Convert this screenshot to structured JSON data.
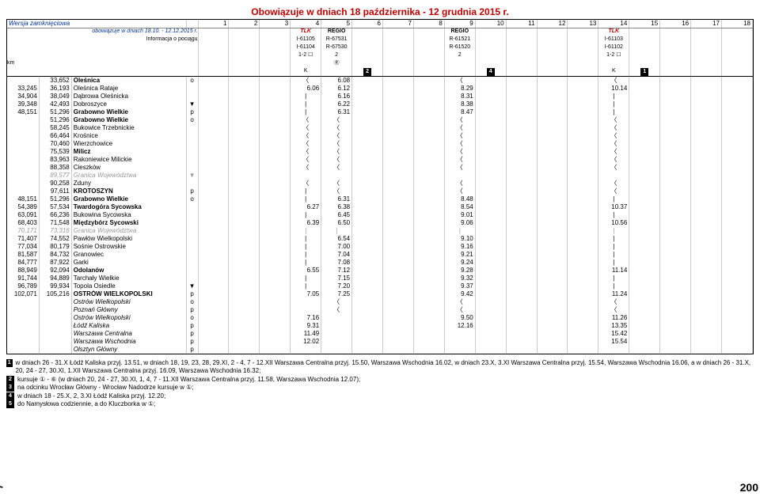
{
  "title": "Obowiązuje w dniach 18 października - 12 grudnia 2015 r.",
  "header": {
    "line1": "Wersja zamknięciowa",
    "line2": "obowiązuje w dniach 18.10. - 12.12.2015 r.",
    "line3": "Informacja o pociągu",
    "km_label": "km"
  },
  "col_numbers": [
    "1",
    "2",
    "3",
    "4",
    "5",
    "6",
    "7",
    "8",
    "9",
    "10",
    "11",
    "12",
    "13",
    "14",
    "15",
    "16",
    "17",
    "18"
  ],
  "trains": [
    {
      "col": 4,
      "lines": [
        "TLK",
        "I-61105",
        "I-61104",
        "1-2 ☐",
        "",
        "K"
      ],
      "types": [
        "tlk",
        "",
        "",
        "",
        "",
        ""
      ]
    },
    {
      "col": 5,
      "lines": [
        "REGIO",
        "R-67531",
        "R-67530",
        "2",
        "Ⓡ",
        ""
      ],
      "types": [
        "regio",
        "",
        "",
        "",
        "",
        ""
      ]
    },
    {
      "col": 6,
      "lines": [
        "",
        "",
        "",
        "",
        "",
        "2"
      ],
      "types": [
        "",
        "",
        "",
        "",
        "",
        "box"
      ]
    },
    {
      "col": 9,
      "lines": [
        "REGIO",
        "R-61521",
        "R-61520",
        "2",
        "",
        ""
      ],
      "types": [
        "regio",
        "",
        "",
        "",
        "",
        ""
      ]
    },
    {
      "col": 10,
      "lines": [
        "",
        "",
        "",
        "",
        "",
        "4"
      ],
      "types": [
        "",
        "",
        "",
        "",
        "",
        "box"
      ]
    },
    {
      "col": 14,
      "lines": [
        "TLK",
        "I-61103",
        "I-61102",
        "1-2 ☐",
        "",
        "K"
      ],
      "types": [
        "tlk",
        "",
        "",
        "",
        "",
        ""
      ]
    },
    {
      "col": 15,
      "lines": [
        "",
        "",
        "",
        "",
        "",
        "1"
      ],
      "types": [
        "",
        "",
        "",
        "",
        "",
        "box"
      ]
    }
  ],
  "stations": [
    {
      "km1": "",
      "km2": "33,652",
      "name": "Oleśnica",
      "op": "o",
      "bold": true,
      "cells": {
        "4": "〈",
        "5": "6.08",
        "9": "〈",
        "14": "〈"
      }
    },
    {
      "km1": "33,245",
      "km2": "36,193",
      "name": "Oleśnica Rataje",
      "op": "",
      "cells": {
        "4": "6.06",
        "5": "6.12",
        "9": "8.29",
        "14": "10.14"
      }
    },
    {
      "km1": "34,904",
      "km2": "38,049",
      "name": "Dąbrowa Oleśnicka",
      "op": "",
      "cells": {
        "4": "|",
        "5": "6.16",
        "9": "8.31",
        "14": "|"
      }
    },
    {
      "km1": "39,348",
      "km2": "42,493",
      "name": "Dobroszyce",
      "op": "▼",
      "cells": {
        "4": "|",
        "5": "6.22",
        "9": "8.38",
        "14": "|"
      }
    },
    {
      "km1": "48,151",
      "km2": "51,296",
      "name": "Grabowno Wielkie",
      "op": "p",
      "bold": true,
      "cells": {
        "4": "|",
        "5": "6.31",
        "9": "8.47",
        "14": "|"
      }
    },
    {
      "km1": "",
      "km2": "51,296",
      "name": "Grabowno Wielkie",
      "op": "o",
      "bold": true,
      "cells": {
        "4": "〈",
        "5": "〈",
        "9": "〈",
        "14": "〈"
      }
    },
    {
      "km1": "",
      "km2": "58,245",
      "name": "Bukowice Trzebnickie",
      "op": "",
      "cells": {
        "4": "〈",
        "5": "〈",
        "9": "〈",
        "14": "〈"
      }
    },
    {
      "km1": "",
      "km2": "66,464",
      "name": "Krośnice",
      "op": "",
      "cells": {
        "4": "〈",
        "5": "〈",
        "9": "〈",
        "14": "〈"
      }
    },
    {
      "km1": "",
      "km2": "70,460",
      "name": "Wierzchowice",
      "op": "",
      "cells": {
        "4": "〈",
        "5": "〈",
        "9": "〈",
        "14": "〈"
      }
    },
    {
      "km1": "",
      "km2": "75,539",
      "name": "Milicz",
      "op": "",
      "bold": true,
      "cells": {
        "4": "〈",
        "5": "〈",
        "9": "〈",
        "14": "〈"
      }
    },
    {
      "km1": "",
      "km2": "83,963",
      "name": "Rakoniewice Milickie",
      "op": "",
      "cells": {
        "4": "〈",
        "5": "〈",
        "9": "〈",
        "14": "〈"
      }
    },
    {
      "km1": "",
      "km2": "88,358",
      "name": "Cieszków",
      "op": "",
      "cells": {
        "4": "〈",
        "5": "〈",
        "9": "〈",
        "14": "〈"
      }
    },
    {
      "km1": "",
      "km2": "89,577",
      "name": "Granica Województwa",
      "op": "▼",
      "gray": true,
      "cells": {}
    },
    {
      "km1": "",
      "km2": "90,258",
      "name": "Zduny",
      "op": "",
      "cells": {
        "4": "〈",
        "5": "〈",
        "9": "〈",
        "14": "〈"
      }
    },
    {
      "km1": "",
      "km2": "97,611",
      "name": "KROTOSZYN",
      "op": "p",
      "bold": true,
      "cells": {
        "4": "|",
        "5": "〈",
        "9": "〈",
        "14": "〈"
      }
    },
    {
      "km1": "48,151",
      "km2": "51,296",
      "name": "Grabowno Wielkie",
      "op": "o",
      "bold": true,
      "cells": {
        "4": "|",
        "5": "6.31",
        "9": "8.48",
        "14": "|"
      }
    },
    {
      "km1": "54,389",
      "km2": "57,534",
      "name": "Twardogóra Sycowska",
      "op": "",
      "bold": true,
      "cells": {
        "4": "6.27",
        "5": "6.38",
        "9": "8.54",
        "14": "10.37"
      }
    },
    {
      "km1": "63,091",
      "km2": "66,236",
      "name": "Bukowina Sycowska",
      "op": "",
      "cells": {
        "4": "|",
        "5": "6.45",
        "9": "9.01",
        "14": "|"
      }
    },
    {
      "km1": "68,403",
      "km2": "71,548",
      "name": "Międzybórz Sycowski",
      "op": "",
      "bold": true,
      "cells": {
        "4": "6.39",
        "5": "6.50",
        "9": "9.06",
        "14": "10.56"
      }
    },
    {
      "km1": "70,171",
      "km2": "73,316",
      "name": "Granica Województwa",
      "op": "",
      "gray": true,
      "cells": {
        "4": "|",
        "5": "|",
        "9": "|",
        "14": "|"
      }
    },
    {
      "km1": "71,407",
      "km2": "74,552",
      "name": "Pawłów Wielkopolski",
      "op": "",
      "cells": {
        "4": "|",
        "5": "6.54",
        "9": "9.10",
        "14": "|"
      }
    },
    {
      "km1": "77,034",
      "km2": "80,179",
      "name": "Sośnie Ostrowskie",
      "op": "",
      "cells": {
        "4": "|",
        "5": "7.00",
        "9": "9.16",
        "14": "|"
      }
    },
    {
      "km1": "81,587",
      "km2": "84,732",
      "name": "Granowiec",
      "op": "",
      "cells": {
        "4": "|",
        "5": "7.04",
        "9": "9.21",
        "14": "|"
      }
    },
    {
      "km1": "84,777",
      "km2": "87,922",
      "name": "Garki",
      "op": "",
      "cells": {
        "4": "|",
        "5": "7.08",
        "9": "9.24",
        "14": "|"
      }
    },
    {
      "km1": "88,949",
      "km2": "92,094",
      "name": "Odolanów",
      "op": "",
      "bold": true,
      "cells": {
        "4": "6.55",
        "5": "7.12",
        "9": "9.28",
        "14": "11.14"
      }
    },
    {
      "km1": "91,744",
      "km2": "94,889",
      "name": "Tarchały Wielkie",
      "op": "",
      "cells": {
        "4": "|",
        "5": "7.15",
        "9": "9.32",
        "14": "|"
      }
    },
    {
      "km1": "96,789",
      "km2": "99,934",
      "name": "Topola Osiedle",
      "op": "▼",
      "cells": {
        "4": "|",
        "5": "7.20",
        "9": "9.37",
        "14": "|"
      }
    },
    {
      "km1": "102,071",
      "km2": "105,216",
      "name": "OSTRÓW WIELKOPOLSKI",
      "op": "p",
      "bold": true,
      "cells": {
        "4": "7.05",
        "5": "7.25",
        "9": "9.42",
        "14": "11.24"
      }
    },
    {
      "km1": "",
      "km2": "",
      "name": "Ostrów Wielkopolski",
      "op": "o",
      "italic": true,
      "cells": {
        "5": "〈",
        "9": "〈",
        "14": "〈"
      }
    },
    {
      "km1": "",
      "km2": "",
      "name": "Poznań Główny",
      "op": "p",
      "italic": true,
      "cells": {
        "5": "〈",
        "9": "〈",
        "14": "〈"
      }
    },
    {
      "km1": "",
      "km2": "",
      "name": "Ostrów Wielkopolski",
      "op": "o",
      "italic": true,
      "cells": {
        "4": "7.16",
        "9": "9.50",
        "14": "11.26"
      }
    },
    {
      "km1": "",
      "km2": "",
      "name": "Łódź Kaliska",
      "op": "p",
      "italic": true,
      "cells": {
        "4": "9.31",
        "9": "12.16",
        "14": "13.35"
      }
    },
    {
      "km1": "",
      "km2": "",
      "name": "Warszawa Centralna",
      "op": "p",
      "italic": true,
      "cells": {
        "4": "11.49",
        "14": "15.42"
      }
    },
    {
      "km1": "",
      "km2": "",
      "name": "Warszawa Wschodnia",
      "op": "p",
      "italic": true,
      "cells": {
        "4": "12.02",
        "14": "15.54"
      }
    },
    {
      "km1": "",
      "km2": "",
      "name": "Olsztyn Główny",
      "op": "p",
      "italic": true,
      "cells": {}
    }
  ],
  "footnotes": [
    {
      "num": "1",
      "text": "w dniach 26 - 31.X Łódź Kaliska przyj. 13.51, w dniach 18, 19, 23, 28, 29.XI, 2 - 4, 7 - 12.XII Warszawa Centralna przyj. 15.50, Warszawa Wschodnia 16.02, w dniach 23.X, 3.XI Warszawa Centralna przyj. 15.54, Warszawa Wschodnia 16.06, a w dniach 26 - 31.X, 20, 24 - 27, 30.XI, 1.XII Warszawa Centralna przyj. 16.09, Warszawa Wschodnia 16.32;"
    },
    {
      "num": "2",
      "text": "kursuje ① - ⑥ (w dniach 20, 24 - 27, 30.XI, 1, 4, 7 - 11.XII Warszawa Centralna przyj. 11.58, Warszawa Wschodnia 12.07);"
    },
    {
      "num": "3",
      "text": "na odcinku Wrocław Główny - Wrocław Nadodrze kursuje w ①;"
    },
    {
      "num": "4",
      "text": "w dniach 18 - 25.X, 2, 3.XI Łódź Kaliska przyj. 12.20;"
    },
    {
      "num": "5",
      "text": "do Namysłowa codziennie, a do Kluczborka w ①;"
    }
  ],
  "page_left": "7",
  "page_right": "200"
}
